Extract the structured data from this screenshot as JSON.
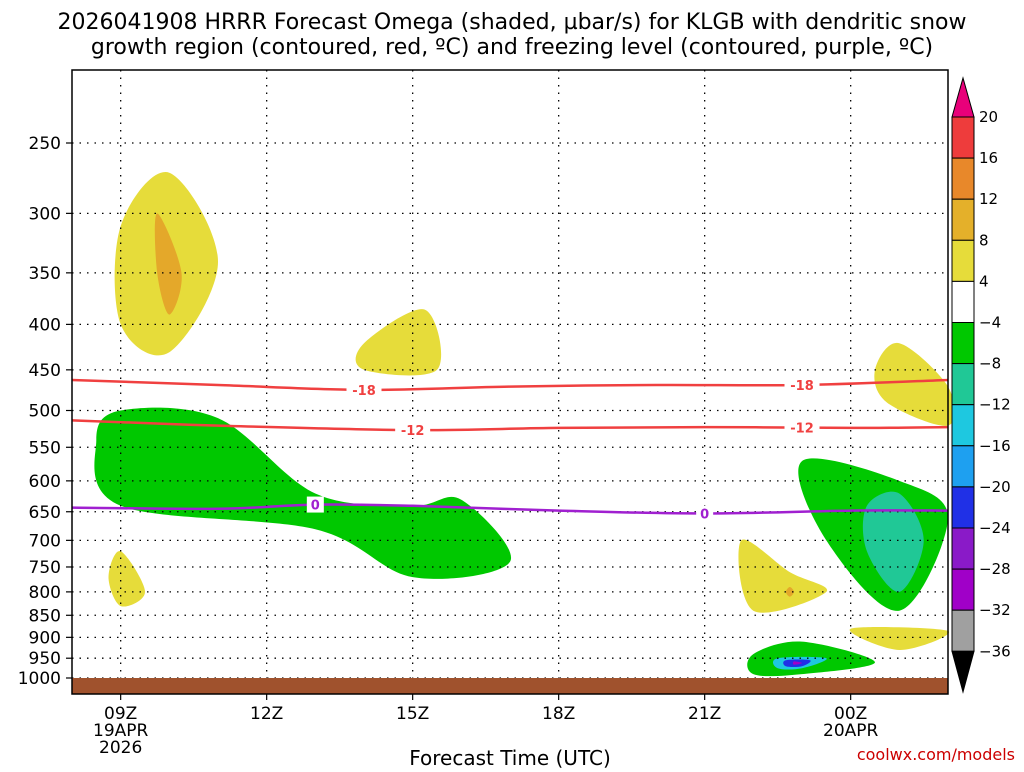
{
  "title": {
    "line1": "2026041908 HRRR Forecast Omega (shaded, µbar/s) for KLGB with dendritic snow",
    "line2": "growth region (contoured, red, ºC) and freezing level (contoured, purple, ºC)"
  },
  "credit": "coolwx.com/models",
  "chart_data": {
    "type": "time-height cross section",
    "xlabel": "Forecast Time (UTC)",
    "x_ticks": [
      {
        "time": "2026-04-19 09:00",
        "label": [
          "09Z",
          "19APR",
          "2026"
        ]
      },
      {
        "time": "2026-04-19 12:00",
        "label": [
          "12Z"
        ]
      },
      {
        "time": "2026-04-19 15:00",
        "label": [
          "15Z"
        ]
      },
      {
        "time": "2026-04-19 18:00",
        "label": [
          "18Z"
        ]
      },
      {
        "time": "2026-04-19 21:00",
        "label": [
          "21Z"
        ]
      },
      {
        "time": "2026-04-20 00:00",
        "label": [
          "00Z",
          "20APR"
        ]
      }
    ],
    "xlim": [
      "2026-04-19 08:00",
      "2026-04-20 02:00"
    ],
    "y_ticks": [
      250,
      300,
      350,
      400,
      450,
      500,
      550,
      600,
      650,
      700,
      750,
      800,
      850,
      900,
      950,
      1000
    ],
    "ylim": [
      200,
      1020
    ],
    "grid": "dotted",
    "colorbar": {
      "levels": [
        20,
        16,
        12,
        8,
        4,
        -4,
        -8,
        -12,
        -16,
        -20,
        -24,
        -28,
        -32,
        -36
      ],
      "colors": [
        "#e8007a",
        "#ee3c3c",
        "#e8882a",
        "#e4b02a",
        "#e6dc3a",
        "#ffffff",
        "#00c800",
        "#20c896",
        "#1ec8e0",
        "#1ea0f0",
        "#2030e6",
        "#8a1ac8",
        "#a000c8",
        "#a0a0a0",
        "#000000"
      ]
    },
    "contours": [
      {
        "name": "-18",
        "label": "-18",
        "color": "#f04040",
        "labels_at": [
          "2026-04-19 14:00",
          "2026-04-19 23:00"
        ],
        "points": [
          [
            "2026-04-19 08:00",
            462
          ],
          [
            "2026-04-19 11:00",
            468
          ],
          [
            "2026-04-19 14:00",
            474
          ],
          [
            "2026-04-19 17:00",
            470
          ],
          [
            "2026-04-19 20:00",
            468
          ],
          [
            "2026-04-19 23:00",
            468
          ],
          [
            "2026-04-20 02:00",
            462
          ]
        ]
      },
      {
        "name": "-12",
        "label": "-12",
        "color": "#f04040",
        "labels_at": [
          "2026-04-19 15:00",
          "2026-04-19 23:00"
        ],
        "points": [
          [
            "2026-04-19 08:00",
            513
          ],
          [
            "2026-04-19 11:00",
            520
          ],
          [
            "2026-04-19 15:00",
            526
          ],
          [
            "2026-04-19 18:00",
            523
          ],
          [
            "2026-04-19 21:00",
            522
          ],
          [
            "2026-04-20 00:00",
            523
          ],
          [
            "2026-04-20 02:00",
            522
          ]
        ]
      },
      {
        "name": "0",
        "label": "0",
        "color": "#a020d0",
        "labels_at": [
          "2026-04-19 13:00",
          "2026-04-19 21:00"
        ],
        "points": [
          [
            "2026-04-19 08:00",
            643
          ],
          [
            "2026-04-19 11:00",
            645
          ],
          [
            "2026-04-19 13:00",
            638
          ],
          [
            "2026-04-19 15:00",
            640
          ],
          [
            "2026-04-19 18:00",
            648
          ],
          [
            "2026-04-19 21:00",
            653
          ],
          [
            "2026-04-20 00:00",
            648
          ],
          [
            "2026-04-20 02:00",
            648
          ]
        ]
      }
    ],
    "regions": [
      {
        "name": "upper-updraft-yellow",
        "level": 4,
        "color": "#e6dc3a",
        "points": [
          [
            "2026-04-19 09:00",
            310
          ],
          [
            "2026-04-19 10:00",
            270
          ],
          [
            "2026-04-19 11:00",
            340
          ],
          [
            "2026-04-19 10:00",
            430
          ],
          [
            "2026-04-19 09:00",
            400
          ]
        ]
      },
      {
        "name": "upper-updraft-orange",
        "level": 8,
        "color": "#e4a82a",
        "points": [
          [
            "2026-04-19 09:45",
            300
          ],
          [
            "2026-04-19 10:15",
            350
          ],
          [
            "2026-04-19 10:00",
            390
          ],
          [
            "2026-04-19 09:45",
            350
          ]
        ]
      },
      {
        "name": "mid-yellow",
        "level": 4,
        "color": "#e6dc3a",
        "points": [
          [
            "2026-04-19 14:00",
            420
          ],
          [
            "2026-04-19 15:15",
            385
          ],
          [
            "2026-04-19 15:30",
            450
          ],
          [
            "2026-04-19 14:00",
            450
          ]
        ]
      },
      {
        "name": "downdraft-green",
        "level": -4,
        "color": "#00c800",
        "points": [
          [
            "2026-04-19 08:30",
            540
          ],
          [
            "2026-04-19 09:00",
            500
          ],
          [
            "2026-04-19 11:00",
            510
          ],
          [
            "2026-04-19 13:00",
            620
          ],
          [
            "2026-04-19 15:00",
            640
          ],
          [
            "2026-04-19 16:00",
            630
          ],
          [
            "2026-04-19 17:00",
            740
          ],
          [
            "2026-04-19 15:00",
            770
          ],
          [
            "2026-04-19 13:00",
            680
          ],
          [
            "2026-04-19 09:00",
            640
          ]
        ]
      },
      {
        "name": "low-yellow-left",
        "level": 4,
        "color": "#e6dc3a",
        "points": [
          [
            "2026-04-19 08:45",
            770
          ],
          [
            "2026-04-19 09:00",
            720
          ],
          [
            "2026-04-19 09:30",
            800
          ],
          [
            "2026-04-19 09:00",
            830
          ]
        ]
      },
      {
        "name": "right-green",
        "level": -4,
        "color": "#00c800",
        "points": [
          [
            "2026-04-19 23:00",
            570
          ],
          [
            "2026-04-20 01:00",
            600
          ],
          [
            "2026-04-20 02:00",
            660
          ],
          [
            "2026-04-20 01:00",
            840
          ],
          [
            "2026-04-19 23:30",
            700
          ]
        ]
      },
      {
        "name": "right-teal",
        "level": -8,
        "color": "#20c896",
        "points": [
          [
            "2026-04-20 00:20",
            640
          ],
          [
            "2026-04-20 01:00",
            620
          ],
          [
            "2026-04-20 01:30",
            700
          ],
          [
            "2026-04-20 01:00",
            800
          ],
          [
            "2026-04-20 00:20",
            720
          ]
        ]
      },
      {
        "name": "right-upper-yellow",
        "level": 4,
        "color": "#e6dc3a",
        "points": [
          [
            "2026-04-20 00:30",
            450
          ],
          [
            "2026-04-20 01:00",
            420
          ],
          [
            "2026-04-20 02:00",
            470
          ],
          [
            "2026-04-20 02:00",
            520
          ],
          [
            "2026-04-20 00:45",
            490
          ]
        ]
      },
      {
        "name": "low-yellow-right",
        "level": 4,
        "color": "#e6dc3a",
        "points": [
          [
            "2026-04-19 21:45",
            700
          ],
          [
            "2026-04-19 22:45",
            760
          ],
          [
            "2026-04-19 23:30",
            800
          ],
          [
            "2026-04-19 22:00",
            840
          ]
        ]
      },
      {
        "name": "low-orange-right",
        "level": 8,
        "color": "#e4a82a",
        "points": [
          [
            "2026-04-19 22:45",
            790
          ],
          [
            "2026-04-19 22:50",
            800
          ],
          [
            "2026-04-19 22:45",
            810
          ],
          [
            "2026-04-19 22:40",
            800
          ]
        ]
      },
      {
        "name": "pbl-yellow",
        "level": 4,
        "color": "#e6dc3a",
        "points": [
          [
            "2026-04-20 00:00",
            880
          ],
          [
            "2026-04-20 02:00",
            885
          ],
          [
            "2026-04-20 01:00",
            930
          ]
        ]
      },
      {
        "name": "surface-green",
        "level": -4,
        "color": "#00c800",
        "points": [
          [
            "2026-04-19 22:00",
            940
          ],
          [
            "2026-04-19 23:00",
            910
          ],
          [
            "2026-04-20 00:30",
            960
          ],
          [
            "2026-04-19 23:00",
            990
          ],
          [
            "2026-04-19 22:00",
            990
          ]
        ]
      },
      {
        "name": "surface-cyan",
        "level": -12,
        "color": "#1ec8e0",
        "points": [
          [
            "2026-04-19 22:30",
            950
          ],
          [
            "2026-04-19 23:30",
            950
          ],
          [
            "2026-04-19 23:00",
            975
          ],
          [
            "2026-04-19 22:30",
            975
          ]
        ]
      },
      {
        "name": "surface-blue",
        "level": -20,
        "color": "#2030e6",
        "points": [
          [
            "2026-04-19 22:40",
            955
          ],
          [
            "2026-04-19 23:10",
            955
          ],
          [
            "2026-04-19 23:00",
            970
          ],
          [
            "2026-04-19 22:40",
            970
          ]
        ]
      },
      {
        "name": "surface-purple",
        "level": -28,
        "color": "#a000c8",
        "points": [
          [
            "2026-04-19 22:50",
            958
          ],
          [
            "2026-04-19 23:00",
            962
          ],
          [
            "2026-04-19 22:50",
            966
          ]
        ]
      }
    ]
  }
}
